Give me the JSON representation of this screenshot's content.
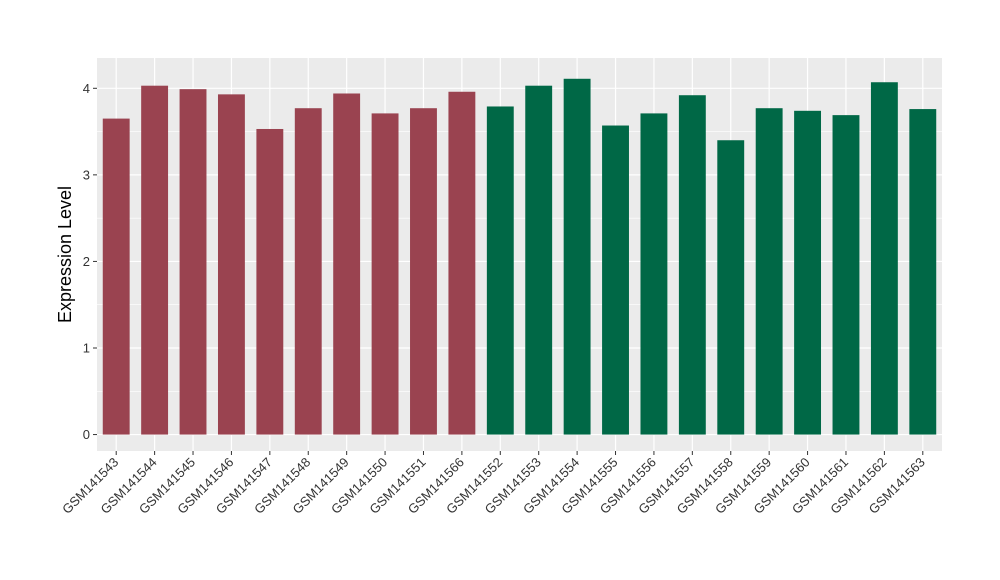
{
  "chart_data": {
    "type": "bar",
    "title": "",
    "xlabel": "",
    "ylabel": "Expression Level",
    "ylim": [
      -0.19,
      4.35
    ],
    "yticks": [
      0,
      1,
      2,
      3,
      4
    ],
    "grid": true,
    "legend": "none",
    "colors": {
      "group_a": "#9A4350",
      "group_b": "#006846",
      "panel_bg": "#EBEBEB",
      "grid": "#FFFFFF"
    },
    "categories": [
      "GSM141543",
      "GSM141544",
      "GSM141545",
      "GSM141546",
      "GSM141547",
      "GSM141548",
      "GSM141549",
      "GSM141550",
      "GSM141551",
      "GSM141566",
      "GSM141552",
      "GSM141553",
      "GSM141554",
      "GSM141555",
      "GSM141556",
      "GSM141557",
      "GSM141558",
      "GSM141559",
      "GSM141560",
      "GSM141561",
      "GSM141562",
      "GSM141563"
    ],
    "values": [
      3.65,
      4.03,
      3.99,
      3.93,
      3.53,
      3.77,
      3.94,
      3.71,
      3.77,
      3.96,
      3.79,
      4.03,
      4.11,
      3.57,
      3.71,
      3.92,
      3.4,
      3.77,
      3.74,
      3.69,
      4.07,
      3.76
    ],
    "groups": [
      "a",
      "a",
      "a",
      "a",
      "a",
      "a",
      "a",
      "a",
      "a",
      "a",
      "b",
      "b",
      "b",
      "b",
      "b",
      "b",
      "b",
      "b",
      "b",
      "b",
      "b",
      "b"
    ]
  }
}
